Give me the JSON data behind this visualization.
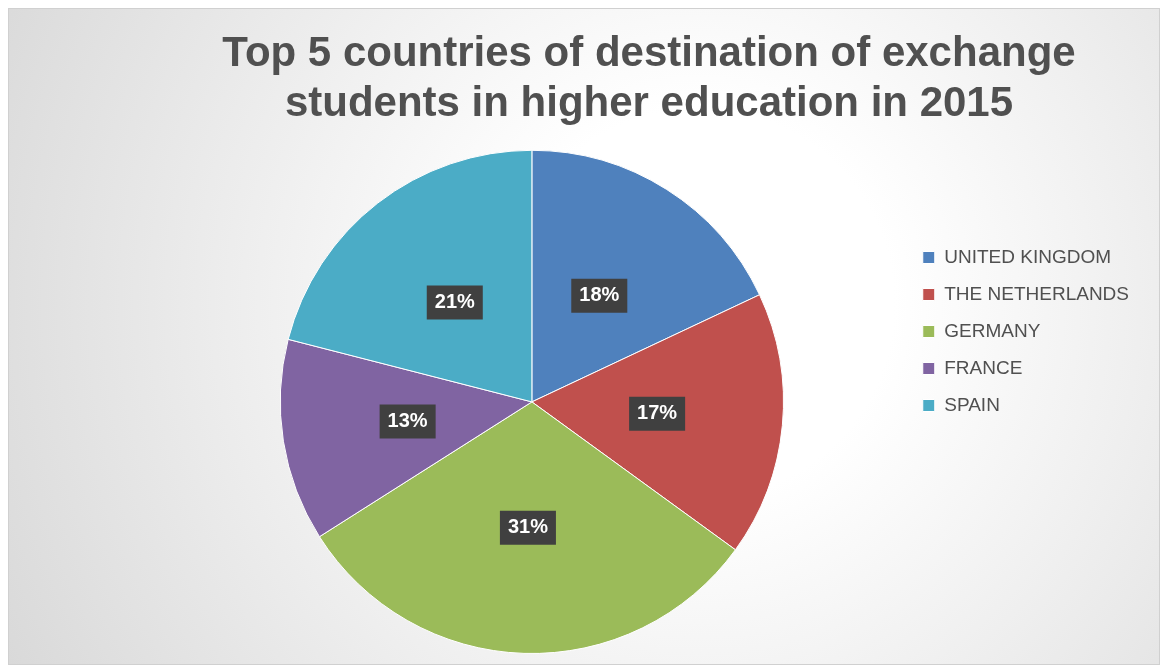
{
  "chart_data": {
    "type": "pie",
    "title": "Top 5 countries of destination of exchange students in higher education in 2015",
    "categories": [
      "UNITED KINGDOM",
      "THE NETHERLANDS",
      "GERMANY",
      "FRANCE",
      "SPAIN"
    ],
    "values": [
      18,
      17,
      31,
      13,
      21
    ],
    "colors": [
      "#4f81bd",
      "#c0504d",
      "#9bbb59",
      "#8064a2",
      "#4bacc6"
    ],
    "value_labels": [
      "18%",
      "17%",
      "31%",
      "13%",
      "21%"
    ],
    "legend": "right"
  }
}
